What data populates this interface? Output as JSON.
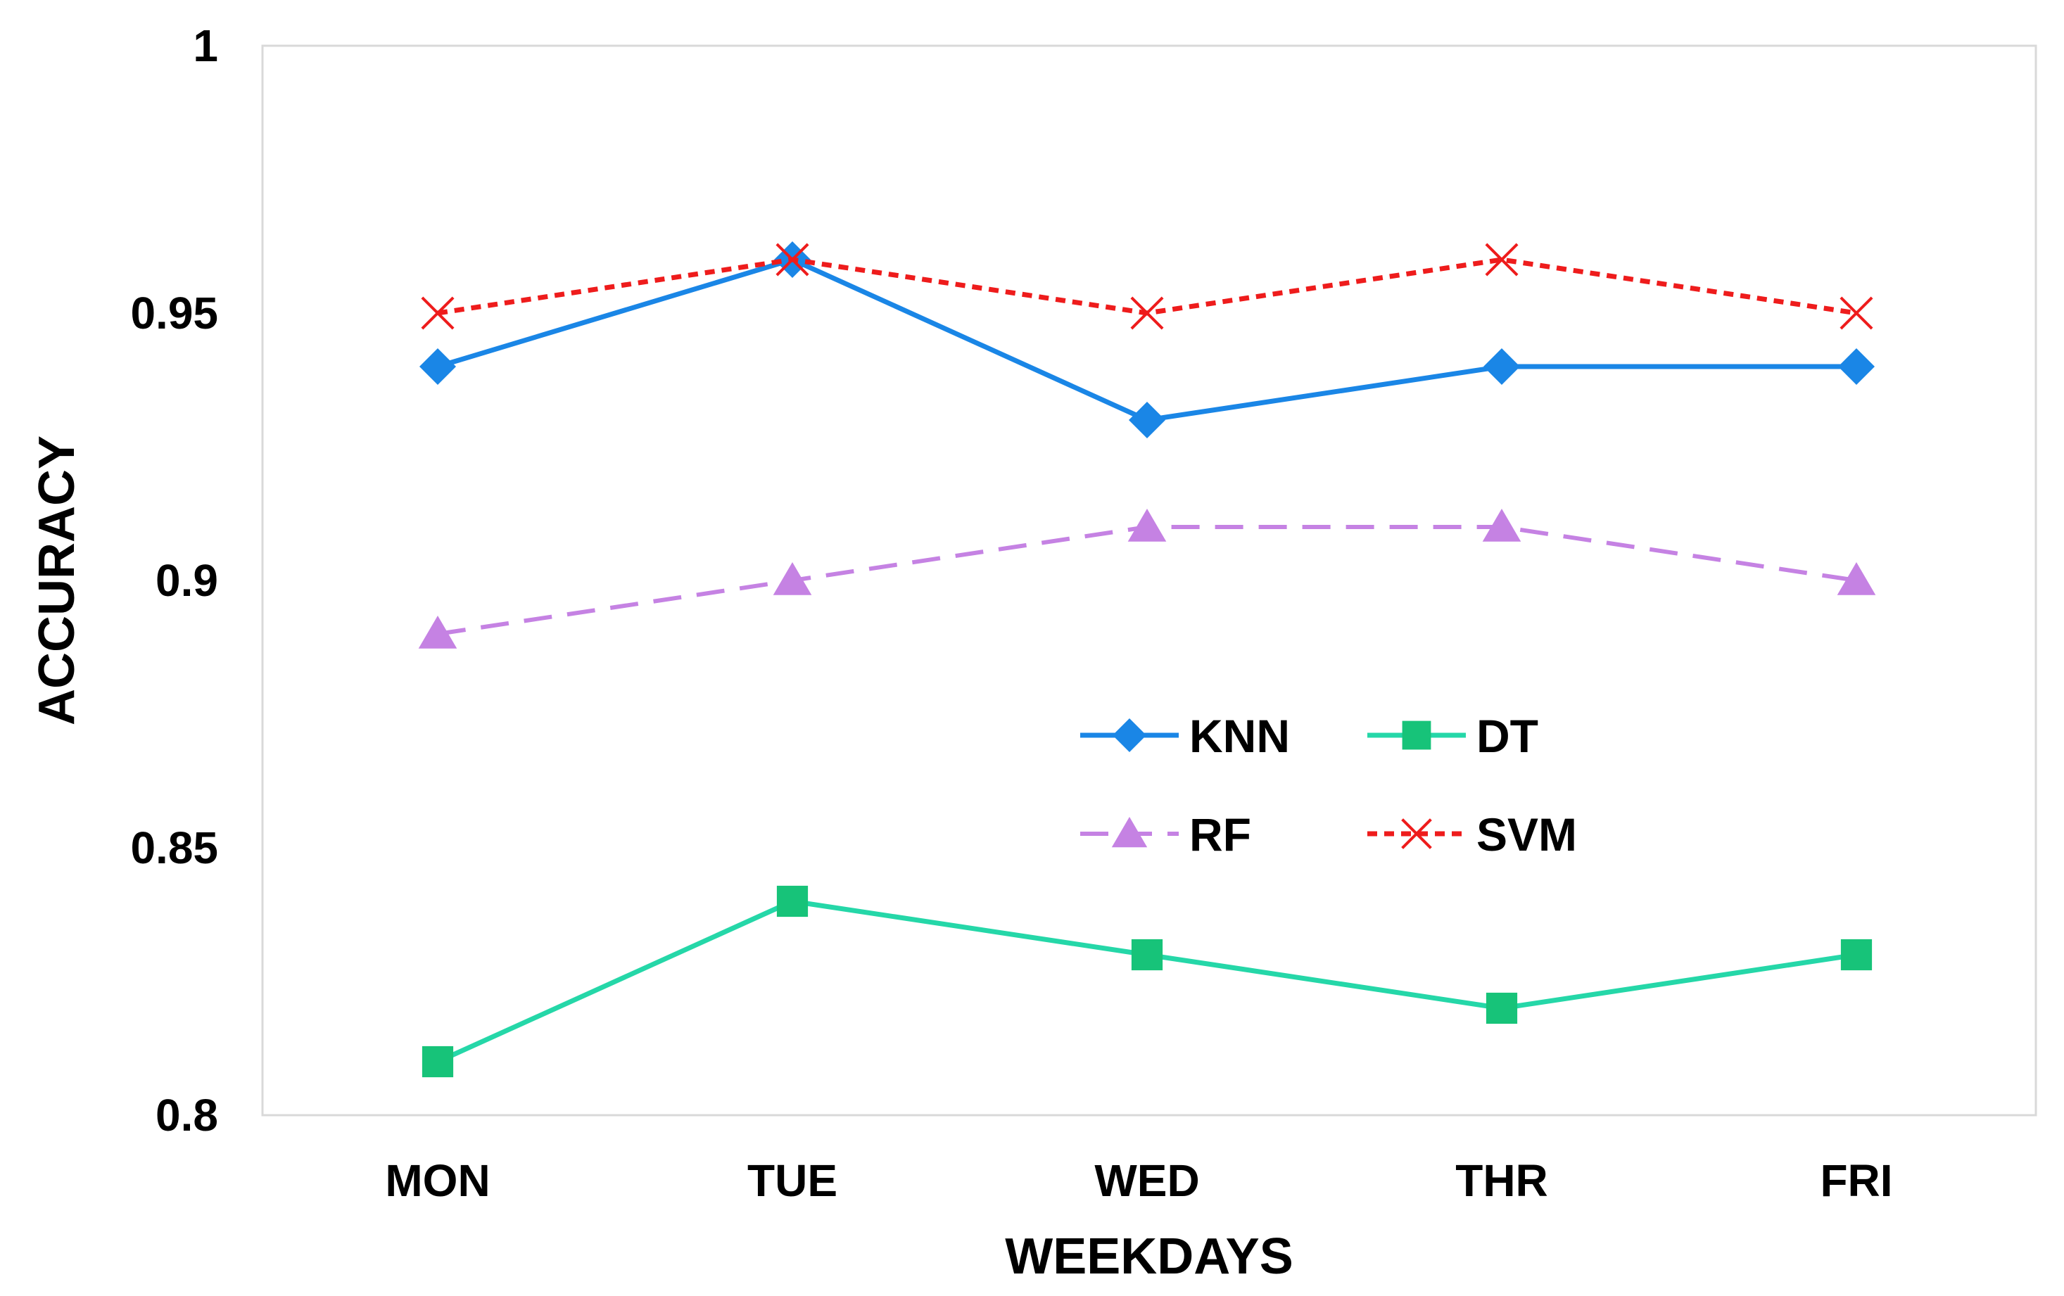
{
  "chart_data": {
    "type": "line",
    "title": "",
    "xlabel": "WEEKDAYS",
    "ylabel": "ACCURACY",
    "categories": [
      "MON",
      "TUE",
      "WED",
      "THR",
      "FRI"
    ],
    "ylim": [
      0.8,
      1
    ],
    "yticks": [
      0.8,
      0.85,
      0.9,
      0.95,
      1
    ],
    "ytick_labels": [
      "0.8",
      "0.85",
      "0.9",
      "0.95",
      "1"
    ],
    "grid": false,
    "legend_position": "center-right",
    "series": [
      {
        "name": "KNN",
        "values": [
          0.94,
          0.96,
          0.93,
          0.94,
          0.94
        ],
        "color": "#1a86e6",
        "dash": "solid",
        "marker": "diamond"
      },
      {
        "name": "DT",
        "values": [
          0.81,
          0.84,
          0.83,
          0.82,
          0.83
        ],
        "color": "#25d7a8",
        "dash": "solid",
        "marker": "square",
        "marker_color": "#17c379"
      },
      {
        "name": "RF",
        "values": [
          0.89,
          0.9,
          0.91,
          0.91,
          0.9
        ],
        "color": "#c582e3",
        "dash": "dashed",
        "marker": "triangle"
      },
      {
        "name": "SVM",
        "values": [
          0.95,
          0.96,
          0.95,
          0.96,
          0.95
        ],
        "color": "#ee1c1c",
        "dash": "dotted",
        "marker": "x"
      }
    ]
  }
}
